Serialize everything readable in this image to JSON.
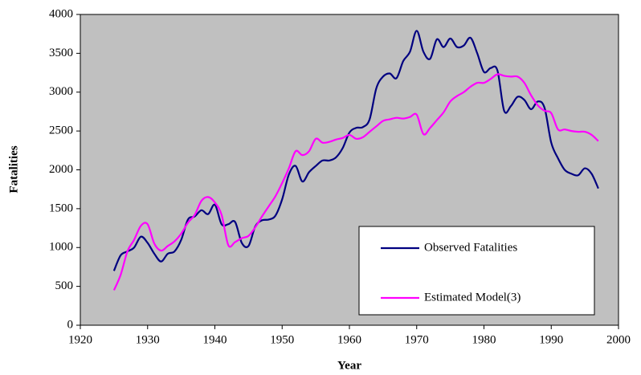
{
  "chart_data": {
    "type": "line",
    "x_label": "Year",
    "y_label": "Fatalities",
    "x": [
      1925,
      1926,
      1927,
      1928,
      1929,
      1930,
      1931,
      1932,
      1933,
      1934,
      1935,
      1936,
      1937,
      1938,
      1939,
      1940,
      1941,
      1942,
      1943,
      1944,
      1945,
      1946,
      1947,
      1948,
      1949,
      1950,
      1951,
      1952,
      1953,
      1954,
      1955,
      1956,
      1957,
      1958,
      1959,
      1960,
      1961,
      1962,
      1963,
      1964,
      1965,
      1966,
      1967,
      1968,
      1969,
      1970,
      1971,
      1972,
      1973,
      1974,
      1975,
      1976,
      1977,
      1978,
      1979,
      1980,
      1981,
      1982,
      1983,
      1984,
      1985,
      1986,
      1987,
      1988,
      1989,
      1990,
      1991,
      1992,
      1993,
      1994,
      1995,
      1996,
      1997
    ],
    "series": [
      {
        "name": "Observed Fatalities",
        "color": "#000080",
        "values": [
          700,
          900,
          950,
          1000,
          1140,
          1060,
          920,
          820,
          920,
          950,
          1100,
          1360,
          1400,
          1480,
          1430,
          1550,
          1300,
          1300,
          1330,
          1060,
          1020,
          1270,
          1350,
          1360,
          1410,
          1620,
          1940,
          2050,
          1850,
          1970,
          2050,
          2120,
          2120,
          2160,
          2280,
          2480,
          2540,
          2550,
          2650,
          3050,
          3200,
          3240,
          3180,
          3400,
          3520,
          3790,
          3520,
          3430,
          3680,
          3580,
          3690,
          3580,
          3600,
          3700,
          3500,
          3260,
          3310,
          3280,
          2760,
          2820,
          2940,
          2900,
          2780,
          2880,
          2800,
          2350,
          2150,
          2000,
          1950,
          1930,
          2020,
          1950,
          1760
        ]
      },
      {
        "name": "Estimated Model(3)",
        "color": "#ff00ff",
        "values": [
          450,
          650,
          950,
          1100,
          1280,
          1300,
          1050,
          960,
          1020,
          1080,
          1180,
          1320,
          1420,
          1600,
          1650,
          1580,
          1420,
          1030,
          1070,
          1120,
          1150,
          1260,
          1400,
          1530,
          1660,
          1830,
          2020,
          2240,
          2190,
          2240,
          2400,
          2350,
          2360,
          2390,
          2410,
          2450,
          2400,
          2420,
          2490,
          2560,
          2630,
          2650,
          2670,
          2660,
          2680,
          2710,
          2460,
          2540,
          2640,
          2740,
          2880,
          2950,
          3000,
          3070,
          3120,
          3120,
          3170,
          3230,
          3210,
          3200,
          3200,
          3120,
          2960,
          2830,
          2760,
          2730,
          2520,
          2520,
          2500,
          2490,
          2490,
          2450,
          2370
        ]
      }
    ],
    "xlim": [
      1920,
      2000
    ],
    "xticks": [
      1920,
      1930,
      1940,
      1950,
      1960,
      1970,
      1980,
      1990,
      2000
    ],
    "ylim": [
      0,
      4000
    ],
    "yticks": [
      0,
      500,
      1000,
      1500,
      2000,
      2500,
      3000,
      3500,
      4000
    ],
    "legend": "lower right",
    "plot_background": "#c0c0c0"
  }
}
